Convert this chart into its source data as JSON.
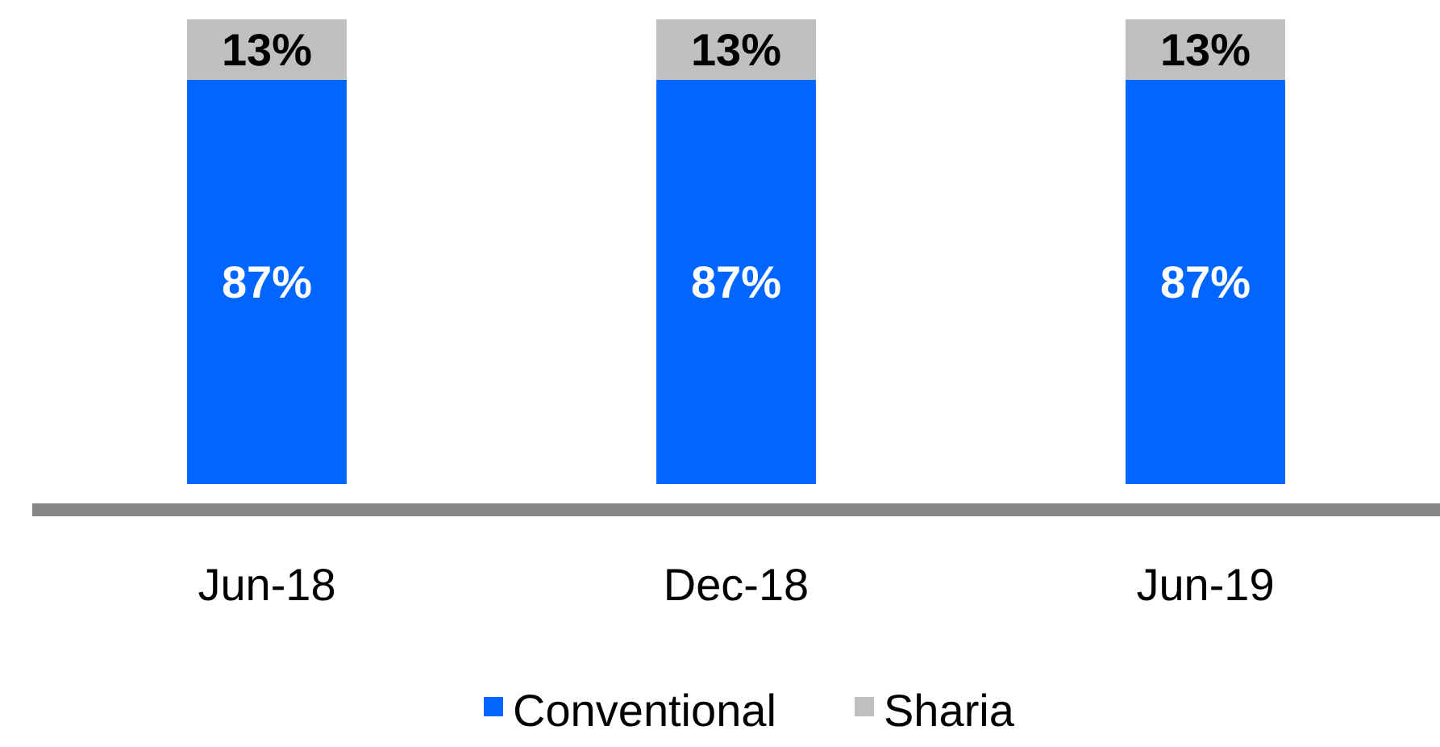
{
  "chart_data": {
    "type": "bar",
    "stacked": true,
    "categories": [
      "Jun-18",
      "Dec-18",
      "Jun-19"
    ],
    "series": [
      {
        "name": "Conventional",
        "color": "#0066ff",
        "values": [
          87,
          87,
          87
        ],
        "value_labels": [
          "87%",
          "87%",
          "87%"
        ]
      },
      {
        "name": "Sharia",
        "color": "#c0c0c0",
        "values": [
          13,
          13,
          13
        ],
        "value_labels": [
          "13%",
          "13%",
          "13%"
        ]
      }
    ],
    "legend": "bottom"
  }
}
